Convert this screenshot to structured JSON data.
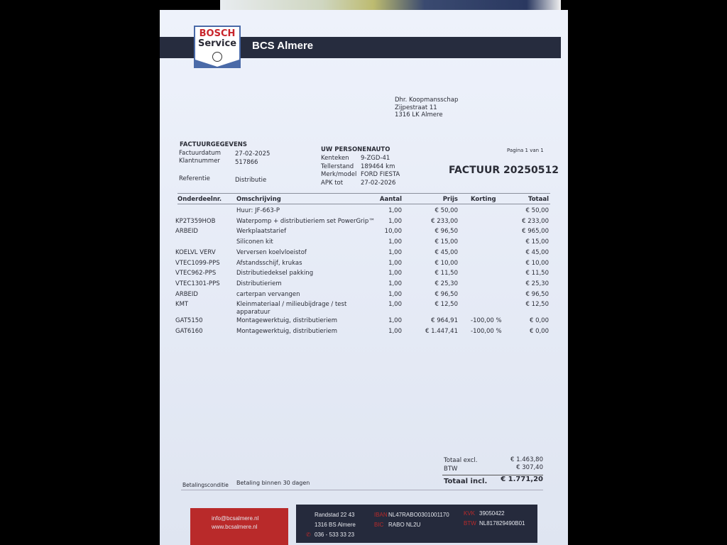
{
  "company": {
    "logo_text_1": "BOSCH",
    "logo_text_2": "Service",
    "name": "BCS Almere"
  },
  "recipient": {
    "name": "Dhr. Koopmansschap",
    "street": "Zijpestraat 11",
    "city": "1316 LK Almere"
  },
  "invoice_details": {
    "heading": "FACTUURGEGEVENS",
    "rows": [
      {
        "label": "Factuurdatum",
        "value": "27-02-2025"
      },
      {
        "label": "Klantnummer",
        "value": "517866"
      },
      {
        "label": "Referentie",
        "value": "Distributie"
      }
    ]
  },
  "vehicle": {
    "heading": "UW PERSONENAUTO",
    "rows": [
      {
        "label": "Kenteken",
        "value": "9-ZGD-41"
      },
      {
        "label": "Tellerstand",
        "value": "189464 km"
      },
      {
        "label": "Merk/model",
        "value": "FORD FIESTA"
      },
      {
        "label": "APK tot",
        "value": "27-02-2026"
      }
    ]
  },
  "page_indicator": "Pagina 1 van 1",
  "invoice_title": "FACTUUR 20250512",
  "table": {
    "headers": [
      "Onderdeelnr.",
      "Omschrijving",
      "Aantal",
      "Prijs",
      "Korting",
      "Totaal"
    ],
    "rows": [
      {
        "code": "",
        "desc": "Huur: JF-663-P",
        "qty": "1,00",
        "price": "€ 50,00",
        "discount": "",
        "total": "€ 50,00"
      },
      {
        "code": "KP2T359HOB",
        "desc": "Waterpomp + distributieriem set PowerGrip™",
        "qty": "1,00",
        "price": "€ 233,00",
        "discount": "",
        "total": "€ 233,00"
      },
      {
        "code": "ARBEID",
        "desc": "Werkplaatstarief",
        "qty": "10,00",
        "price": "€ 96,50",
        "discount": "",
        "total": "€ 965,00"
      },
      {
        "code": "",
        "desc": "Siliconen kit",
        "qty": "1,00",
        "price": "€ 15,00",
        "discount": "",
        "total": "€ 15,00"
      },
      {
        "code": "KOELVL VERV",
        "desc": "Verversen koelvloeistof",
        "qty": "1,00",
        "price": "€ 45,00",
        "discount": "",
        "total": "€ 45,00"
      },
      {
        "code": "VTEC1099-PPS",
        "desc": "Afstandsschijf, krukas",
        "qty": "1,00",
        "price": "€ 10,00",
        "discount": "",
        "total": "€ 10,00"
      },
      {
        "code": "VTEC962-PPS",
        "desc": "Distributiedeksel pakking",
        "qty": "1,00",
        "price": "€ 11,50",
        "discount": "",
        "total": "€ 11,50"
      },
      {
        "code": "VTEC1301-PPS",
        "desc": "Distributieriem",
        "qty": "1,00",
        "price": "€ 25,30",
        "discount": "",
        "total": "€ 25,30"
      },
      {
        "code": "ARBEID",
        "desc": "carterpan vervangen",
        "qty": "1,00",
        "price": "€ 96,50",
        "discount": "",
        "total": "€ 96,50"
      },
      {
        "code": "KMT",
        "desc": "Kleinmateriaal / milieubijdrage / test",
        "desc2": "apparatuur",
        "qty": "1,00",
        "price": "€ 12,50",
        "discount": "",
        "total": "€ 12,50"
      },
      {
        "code": "GAT5150",
        "desc": "Montagewerktuig, distributieriem",
        "qty": "1,00",
        "price": "€ 964,91",
        "discount": "-100,00 %",
        "total": "€ 0,00"
      },
      {
        "code": "GAT6160",
        "desc": "Montagewerktuig, distributieriem",
        "qty": "1,00",
        "price": "€ 1.447,41",
        "discount": "-100,00 %",
        "total": "€ 0,00"
      }
    ]
  },
  "totals": {
    "excl_label": "Totaal excl.",
    "excl": "€ 1.463,80",
    "vat_label": "BTW",
    "vat": "€ 307,40",
    "incl_label": "Totaal incl.",
    "incl": "€ 1.771,20"
  },
  "payment": {
    "label": "Betalingsconditie",
    "value": "Betaling binnen 30 dagen"
  },
  "footer": {
    "email": "info@bcsalmere.nl",
    "website": "www.bcsalmere.nl",
    "street": "Randstad 22 43",
    "city": "1316 BS Almere",
    "phone": "036 - 533 33 23",
    "iban_label": "IBAN",
    "iban": "NL47RABO0301001170",
    "bic_label": "BIC",
    "bic": "RABO NL2U",
    "kvk_label": "KVK",
    "kvk": "39050422",
    "btw_label": "BTW",
    "btw": "NL817829490B01"
  },
  "colors": {
    "band": "#262c3e",
    "accent_red": "#b92a2a",
    "logo_blue": "#4a6aa8"
  }
}
